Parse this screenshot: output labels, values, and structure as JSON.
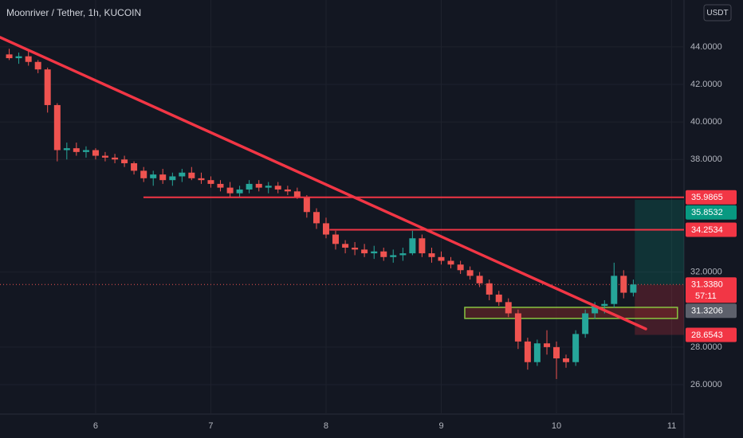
{
  "chart_data": {
    "type": "candlestick",
    "title": "Moonriver / Tether, 1h, KUCOIN",
    "currency": "USDT",
    "countdown": "57:11",
    "x": [
      5.25,
      5.333,
      5.417,
      5.5,
      5.583,
      5.667,
      5.75,
      5.833,
      5.917,
      6,
      6.083,
      6.167,
      6.25,
      6.333,
      6.417,
      6.5,
      6.583,
      6.667,
      6.75,
      6.833,
      6.917,
      7,
      7.083,
      7.167,
      7.25,
      7.333,
      7.417,
      7.5,
      7.583,
      7.667,
      7.75,
      7.833,
      7.917,
      8,
      8.083,
      8.167,
      8.25,
      8.333,
      8.417,
      8.5,
      8.583,
      8.667,
      8.75,
      8.833,
      8.917,
      9,
      9.083,
      9.167,
      9.25,
      9.333,
      9.417,
      9.5,
      9.583,
      9.667,
      9.75,
      9.833,
      9.917,
      10,
      10.083,
      10.167,
      10.25,
      10.333,
      10.417,
      10.5,
      10.583,
      10.667
    ],
    "open": [
      43.6,
      43.4,
      43.5,
      43.2,
      42.8,
      40.9,
      38.5,
      38.6,
      38.4,
      38.5,
      38.2,
      38.1,
      38.0,
      37.8,
      37.4,
      37.0,
      37.2,
      36.9,
      37.1,
      37.3,
      37.0,
      36.9,
      36.7,
      36.5,
      36.2,
      36.4,
      36.7,
      36.5,
      36.6,
      36.4,
      36.3,
      36.0,
      35.2,
      34.6,
      34.0,
      33.5,
      33.3,
      33.2,
      33.0,
      33.1,
      32.8,
      32.9,
      33.0,
      33.8,
      33.0,
      32.8,
      32.6,
      32.4,
      32.1,
      31.8,
      31.4,
      30.8,
      30.4,
      29.8,
      28.3,
      27.2,
      28.2,
      28.0,
      27.4,
      27.2,
      28.7,
      29.8,
      30.2,
      30.3,
      31.8,
      30.9
    ],
    "high": [
      43.9,
      43.7,
      43.8,
      43.3,
      42.9,
      41.0,
      38.9,
      38.9,
      38.7,
      38.6,
      38.4,
      38.3,
      38.2,
      37.9,
      37.6,
      37.4,
      37.5,
      37.3,
      37.5,
      37.6,
      37.3,
      37.1,
      36.9,
      36.8,
      36.6,
      36.9,
      36.9,
      36.8,
      36.8,
      36.6,
      36.5,
      36.1,
      35.4,
      34.9,
      34.2,
      33.7,
      33.6,
      33.5,
      33.4,
      33.3,
      33.2,
      33.3,
      34.2,
      34.0,
      33.3,
      33.1,
      32.8,
      32.6,
      32.3,
      32.0,
      31.6,
      31.0,
      30.6,
      30.0,
      28.5,
      28.4,
      28.9,
      28.3,
      27.6,
      28.9,
      30.0,
      30.4,
      30.5,
      32.5,
      32.1,
      31.6
    ],
    "low": [
      43.3,
      43.1,
      43.0,
      42.6,
      40.5,
      37.9,
      38.0,
      38.2,
      38.1,
      38.0,
      37.9,
      37.8,
      37.6,
      37.2,
      36.8,
      36.6,
      36.7,
      36.6,
      36.8,
      36.9,
      36.7,
      36.5,
      36.3,
      36.0,
      36.0,
      36.2,
      36.3,
      36.2,
      36.2,
      36.1,
      35.9,
      34.9,
      34.3,
      33.8,
      33.2,
      33.0,
      32.9,
      32.8,
      32.7,
      32.6,
      32.5,
      32.6,
      32.9,
      32.8,
      32.5,
      32.4,
      32.2,
      31.9,
      31.6,
      31.2,
      30.5,
      30.2,
      29.6,
      27.9,
      26.8,
      27.0,
      27.6,
      26.3,
      26.9,
      27.0,
      28.5,
      29.5,
      29.8,
      30.1,
      30.6,
      30.7
    ],
    "close": [
      43.4,
      43.5,
      43.2,
      42.8,
      40.9,
      38.5,
      38.6,
      38.4,
      38.5,
      38.2,
      38.1,
      38.0,
      37.8,
      37.4,
      37.0,
      37.2,
      36.9,
      37.1,
      37.3,
      37.0,
      36.9,
      36.7,
      36.5,
      36.2,
      36.4,
      36.7,
      36.5,
      36.6,
      36.4,
      36.3,
      36.0,
      35.2,
      34.6,
      34.0,
      33.5,
      33.3,
      33.2,
      33.0,
      33.1,
      32.8,
      32.9,
      33.0,
      33.8,
      33.0,
      32.8,
      32.6,
      32.4,
      32.1,
      31.8,
      31.4,
      30.8,
      30.4,
      29.8,
      28.3,
      27.2,
      28.2,
      28.0,
      27.4,
      27.2,
      28.7,
      29.8,
      30.2,
      30.3,
      31.8,
      30.9,
      31.338
    ],
    "up_color": "#26a69a",
    "down_color": "#ef5350",
    "xlim": [
      5.17,
      11.107
    ],
    "ylim": [
      24.43,
      46.5
    ],
    "xticks": [
      6,
      7,
      8,
      9,
      10,
      11
    ],
    "yticks": [
      {
        "value": 26,
        "label": "26.0000"
      },
      {
        "value": 28,
        "label": "28.0000"
      },
      {
        "value": 32,
        "label": "32.0000"
      },
      {
        "value": 38,
        "label": "38.0000"
      },
      {
        "value": 40,
        "label": "40.0000"
      },
      {
        "value": 42,
        "label": "42.0000"
      },
      {
        "value": 44,
        "label": "44.0000"
      }
    ],
    "grid": true,
    "trendlines": [
      {
        "x": [
          5.17,
          10.775
        ],
        "y": [
          44.51,
          28.97
        ],
        "color": "#f23645"
      }
    ],
    "hlines": [
      {
        "x0": 6.415,
        "value": 35.9865,
        "color": "#f23645"
      },
      {
        "x0": 8.03,
        "value": 34.2534,
        "color": "#f23645"
      }
    ],
    "zone": {
      "x": [
        9.204,
        11.05
      ],
      "y": [
        29.53,
        30.12
      ],
      "color": "#89c541"
    },
    "position": {
      "x": [
        10.68,
        11.107
      ],
      "entry": 31.3206,
      "target": 35.8532,
      "stop": 28.6543
    },
    "price_labels": [
      {
        "value": 35.9865,
        "label": "35.9865",
        "color": "#f23645"
      },
      {
        "value": 35.8532,
        "label": "35.8532",
        "color": "#089981"
      },
      {
        "value": 34.2534,
        "label": "34.2534",
        "color": "#f23645"
      },
      {
        "value": 31.338,
        "label": "31.3380",
        "color": "#f23645"
      },
      {
        "value": 31.3206,
        "label": "31.3206",
        "color": "#5d606b"
      },
      {
        "value": 28.6543,
        "label": "28.6543",
        "color": "#f23645"
      }
    ]
  }
}
